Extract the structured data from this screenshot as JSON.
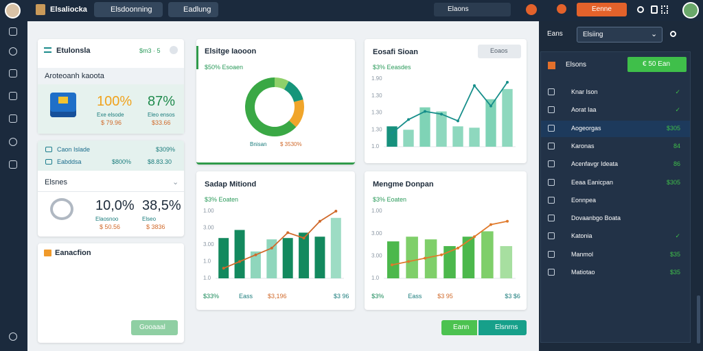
{
  "topbar": {
    "brand": "Elsaliocka",
    "tabs": [
      "Elsdoonning",
      "Eadlung"
    ],
    "search": "Elaons",
    "action": "Eenne"
  },
  "left": {
    "card1": {
      "title": "Etulonsla",
      "badge": "$m3 · 5",
      "subtitle": "Aroteoanh kaoota",
      "stats": [
        {
          "value": "100%",
          "label": "Exe elsode",
          "amount": "$ 79.96",
          "color": "#f0a21c"
        },
        {
          "value": "87%",
          "label": "Eleo ensos",
          "amount": "$33.66",
          "color": "#1f8a4c"
        }
      ]
    },
    "card2": {
      "rows": [
        {
          "name": "Caon Islade",
          "amount": "$309%"
        },
        {
          "name": "Eabddsa",
          "amount": "$800%",
          "extra": "$8.83.30"
        }
      ],
      "title": "Elsnes",
      "stats": [
        {
          "value": "10,0%",
          "label": "Elaosnoo",
          "amount": "$ 50.56",
          "color": "#1d2b3a"
        },
        {
          "value": "38,5%",
          "label": "Elseo",
          "amount": "$ 3836",
          "color": "#1d2b3a"
        }
      ]
    },
    "card3": {
      "title": "Eanacfion",
      "button": "Gooaaal"
    }
  },
  "donut": {
    "type": "pie",
    "title": "Elsitge Iaooon",
    "subtitle": "$50% Esoaen",
    "values": [
      8,
      13,
      16,
      63
    ],
    "colors": [
      "#8fd06a",
      "#16957a",
      "#f0a52a",
      "#3aa845"
    ],
    "legend": "Bnisan",
    "legend_value": "$ 3530%"
  },
  "charts": [
    {
      "type": "bar",
      "title": "Eosafi Sioan",
      "button": "Eoaos",
      "subtitle": "$3% Eeasdes",
      "axis_labels": [
        "1.90",
        "1.30",
        "1.30",
        "1.30",
        "1.0"
      ],
      "ylim": [
        0,
        100
      ],
      "values": [
        30,
        25,
        58,
        52,
        30,
        28,
        70,
        85
      ],
      "line": [
        20,
        40,
        52,
        48,
        38,
        90,
        60,
        95
      ],
      "bar_colors": [
        "#17917d",
        "#8ed8be",
        "#7fd3b6",
        "#8ed8be",
        "#8ed8be",
        "#8ed8be",
        "#7fd3b6",
        "#8ed8be"
      ],
      "line_color": "#168e8a",
      "footer": []
    },
    {
      "type": "bar",
      "title": "Sadap Mitiond",
      "subtitle": "$3% Eoaten",
      "axis_labels": [
        "1.00",
        "3.00",
        "3.00",
        "1.0",
        "1.0"
      ],
      "ylim": [
        0,
        100
      ],
      "values": [
        60,
        72,
        40,
        58,
        60,
        68,
        62,
        90
      ],
      "line": [
        15,
        25,
        35,
        45,
        68,
        60,
        85,
        100
      ],
      "bar_colors": [
        "#13895e",
        "#13895e",
        "#8fd6bc",
        "#8fd6bc",
        "#13895e",
        "#13895e",
        "#13895e",
        "#9ddcc4"
      ],
      "line_color": "#d0692a",
      "footer": [
        "$33%",
        "Eass",
        "$3,196",
        "$3 96"
      ]
    },
    {
      "type": "bar",
      "title": "Mengme Donpan",
      "subtitle": "$3% Eoaten",
      "axis_labels": [
        "1.00",
        "3.00",
        "3.00",
        "1.0"
      ],
      "ylim": [
        0,
        100
      ],
      "values": [
        55,
        62,
        58,
        48,
        62,
        70,
        48
      ],
      "line": [
        20,
        25,
        30,
        35,
        45,
        62,
        80,
        85
      ],
      "bar_colors": [
        "#4cb84c",
        "#7fcf6a",
        "#7fcf6a",
        "#4cb84c",
        "#4cb84c",
        "#7fcf6a",
        "#a7dfa0"
      ],
      "line_color": "#e07a2b",
      "footer": [
        "$3%",
        "Eass",
        "$3 95",
        "$3 $6"
      ]
    }
  ],
  "buttons": [
    "Eann",
    "Elsnrns"
  ],
  "panel": {
    "label": "Eans",
    "dropdown": "Elsiing",
    "section": "Elsons",
    "section_button": "€ 50 Ean",
    "items": [
      {
        "name": "Knar Ison",
        "value": "✓"
      },
      {
        "name": "Aorat Iaa",
        "value": "✓"
      },
      {
        "name": "Aogeorgas",
        "value": "$305"
      },
      {
        "name": "Karonas",
        "value": "84"
      },
      {
        "name": "Acenfavgr Ideata",
        "value": "86"
      },
      {
        "name": "Eeaa Eanicpan",
        "value": "$305"
      },
      {
        "name": "Eonnpea",
        "value": ""
      },
      {
        "name": "Dovaanbgo Boata",
        "value": ""
      },
      {
        "name": "Katonia",
        "value": "✓"
      },
      {
        "name": "Manmol",
        "value": "$35"
      },
      {
        "name": "Matiotao",
        "value": "$35"
      }
    ]
  }
}
